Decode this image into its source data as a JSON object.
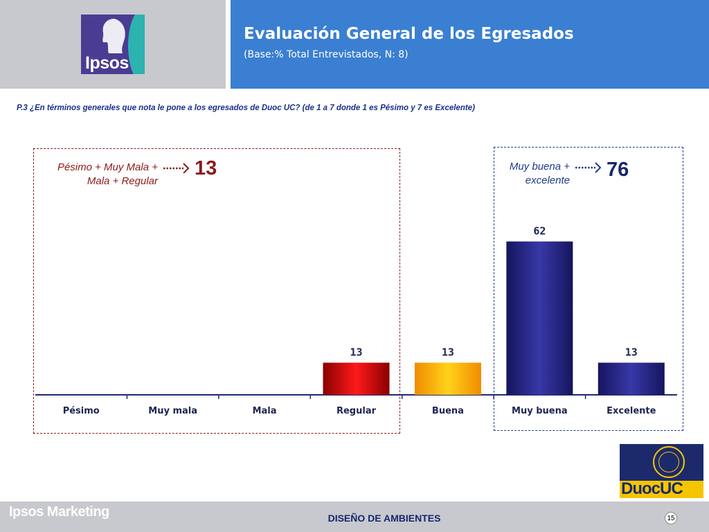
{
  "header": {
    "logo_text": "Ipsos",
    "title": "Evaluación General de los Egresados",
    "subtitle": "(Base:% Total Entrevistados, N: 8)"
  },
  "question": "P.3 ¿En términos generales que nota le pone a los egresados de Duoc UC? (de 1 a 7 donde 1 es Pésimo y 7 es Excelente)",
  "groups": {
    "negative": {
      "label_line1": "Pésimo + Muy Mala +",
      "label_line2": "Mala + Regular",
      "value": "13",
      "color": "#8b1a1a"
    },
    "positive": {
      "label_line1": "Muy buena +",
      "label_line2": "excelente",
      "value": "76",
      "color": "#16266e"
    }
  },
  "chart_data": {
    "type": "bar",
    "title": "Evaluación General de los Egresados",
    "categories": [
      "Pésimo",
      "Muy mala",
      "Mala",
      "Regular",
      "Buena",
      "Muy buena",
      "Excelente"
    ],
    "values": [
      null,
      null,
      null,
      13,
      13,
      62,
      13
    ],
    "data_labels": [
      "",
      "",
      "",
      "13",
      "13",
      "62",
      "13"
    ],
    "bar_colors": [
      "#cc0000",
      "#cc0000",
      "#cc0000",
      "#e30000",
      "#ffc000",
      "#2b2b8f",
      "#2b2b8f"
    ],
    "ylim": [
      0,
      70
    ],
    "grid": false,
    "xlabel": "",
    "ylabel": ""
  },
  "footer": {
    "brand": "Ipsos Marketing",
    "center": "DISEÑO DE AMBIENTES",
    "page": "15",
    "logo_text": "DuocUC"
  }
}
